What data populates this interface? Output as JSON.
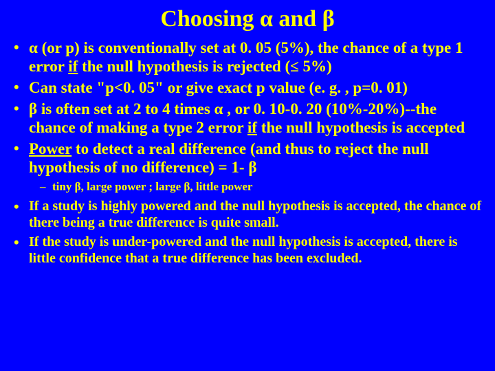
{
  "background_color": "#0000ff",
  "text_color": "#ffff00",
  "font_family": "Times New Roman",
  "title_fontsize": 34,
  "bullet_fontsize": 23,
  "small_bullet_fontsize": 20,
  "sub_bullet_fontsize": 17,
  "title": {
    "pre": "Choosing ",
    "alpha": "α",
    "mid": " and ",
    "beta": "β"
  },
  "b1": {
    "alpha": "α",
    "t1": " (or p) is conventionally set at 0. 05 (5%), the chance of a type 1 error ",
    "if": "if",
    "t2": " the null hypothesis is rejected (",
    "le": "≤",
    "t3": " 5%)"
  },
  "b2": {
    "t": "Can state \"p<0. 05\" or give exact p value (e. g. , p=0. 01)"
  },
  "b3": {
    "beta": "β",
    "t1": " is often set at 2 to 4 times ",
    "alpha": "α",
    "t2": " , or 0. 10-0. 20 (10%-20%)--the chance of making a type 2 error ",
    "if": "if",
    "t3": " the null hypothesis is accepted"
  },
  "b4": {
    "power": "Power",
    "t1": " to detect a real difference (and thus to reject the null hypothesis of no difference) = 1- ",
    "beta": "β"
  },
  "b4s": {
    "t1": "tiny ",
    "beta1": "β",
    "t2": ", large power ; large ",
    "beta2": "β",
    "t3": ", little power"
  },
  "b5": {
    "t": "If a study is highly powered and the null hypothesis is accepted, the chance of there being a true difference is quite small."
  },
  "b6": {
    "t": "If the study is under-powered and the null hypothesis is accepted, there is little confidence that a true difference has been excluded."
  }
}
